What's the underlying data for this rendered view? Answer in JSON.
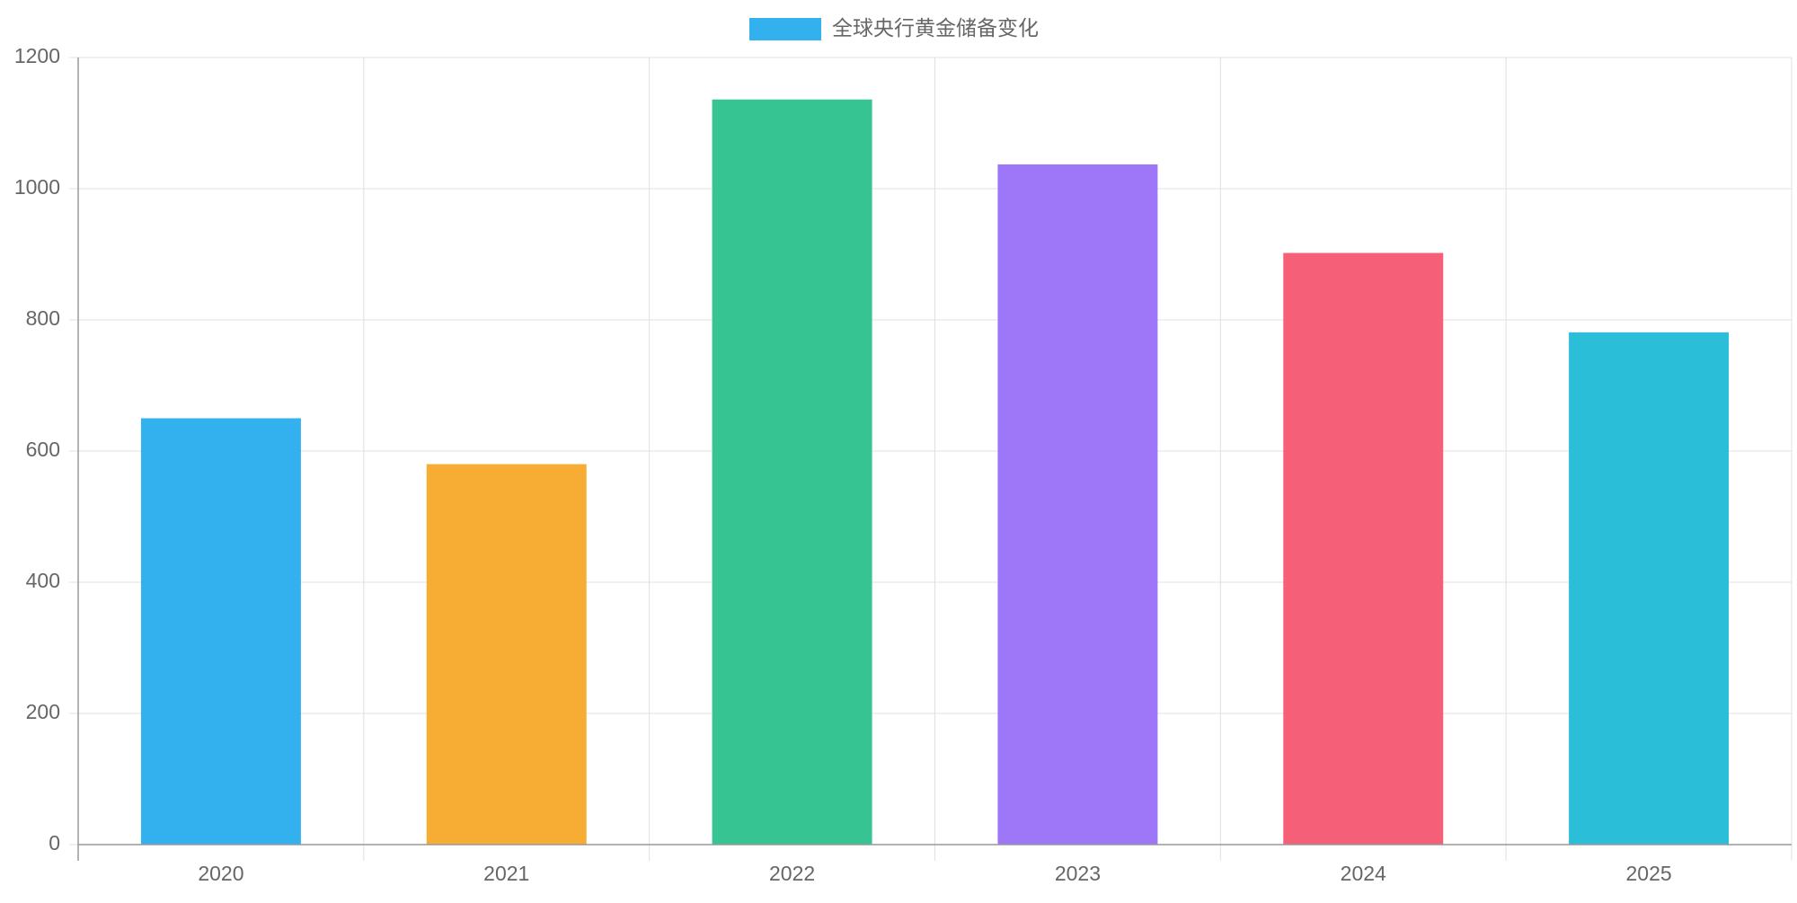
{
  "chart_data": {
    "type": "bar",
    "categories": [
      "2020",
      "2021",
      "2022",
      "2023",
      "2024",
      "2025"
    ],
    "series": [
      {
        "name": "全球央行黄金储备变化",
        "values": [
          650,
          580,
          1136,
          1037,
          902,
          781
        ],
        "colors": [
          "#33b1ee",
          "#f7ad33",
          "#36c493",
          "#9d77f8",
          "#f55f77",
          "#2bbed9"
        ]
      }
    ],
    "ylim": [
      0,
      1200
    ],
    "yticks": [
      0,
      200,
      400,
      600,
      800,
      1000,
      1200
    ],
    "grid": true,
    "legend": "top"
  }
}
